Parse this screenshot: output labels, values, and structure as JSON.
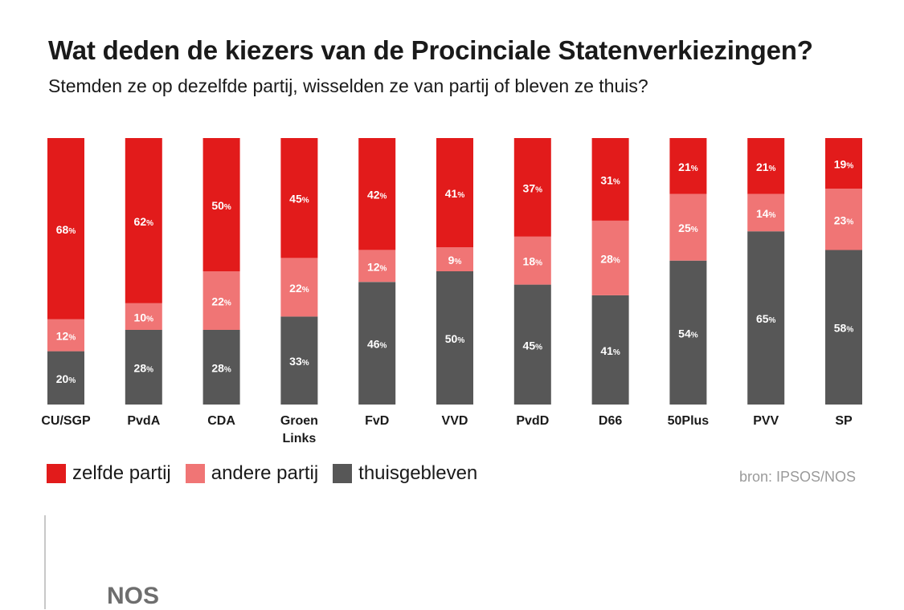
{
  "header": {
    "title": "Wat deden de kiezers van de Procinciale Statenverkiezingen?",
    "subtitle": "Stemden ze op dezelfde partij, wisselden ze van partij of bleven ze thuis?"
  },
  "colors": {
    "zelfde": "#e21b1b",
    "andere": "#f07575",
    "thuis": "#575757"
  },
  "chart_data": {
    "type": "bar",
    "stacked": true,
    "orientation": "vertical",
    "title": "Wat deden de kiezers van de Procinciale Statenverkiezingen?",
    "subtitle": "Stemden ze op dezelfde partij, wisselden ze van partij of bleven ze thuis?",
    "categories": [
      [
        "CU/SGP"
      ],
      [
        "PvdA"
      ],
      [
        "CDA"
      ],
      [
        "Groen",
        "Links"
      ],
      [
        "FvD"
      ],
      [
        "VVD"
      ],
      [
        "PvdD"
      ],
      [
        "D66"
      ],
      [
        "50Plus"
      ],
      [
        "PVV"
      ],
      [
        "SP"
      ]
    ],
    "ylim": [
      0,
      100
    ],
    "unit": "%",
    "series": [
      {
        "name": "thuisgebleven",
        "color_key": "thuis",
        "values": [
          20,
          28,
          28,
          33,
          46,
          50,
          45,
          41,
          54,
          65,
          58
        ]
      },
      {
        "name": "andere partij",
        "color_key": "andere",
        "values": [
          12,
          10,
          22,
          22,
          12,
          9,
          18,
          28,
          25,
          14,
          23
        ]
      },
      {
        "name": "zelfde partij",
        "color_key": "zelfde",
        "values": [
          68,
          62,
          50,
          45,
          42,
          41,
          37,
          31,
          21,
          21,
          19
        ]
      }
    ],
    "legend": [
      {
        "label": "zelfde partij",
        "color_key": "zelfde"
      },
      {
        "label": "andere partij",
        "color_key": "andere"
      },
      {
        "label": "thuisgebleven",
        "color_key": "thuis"
      }
    ]
  },
  "source": "bron: IPSOS/NOS",
  "brand": "NOS"
}
